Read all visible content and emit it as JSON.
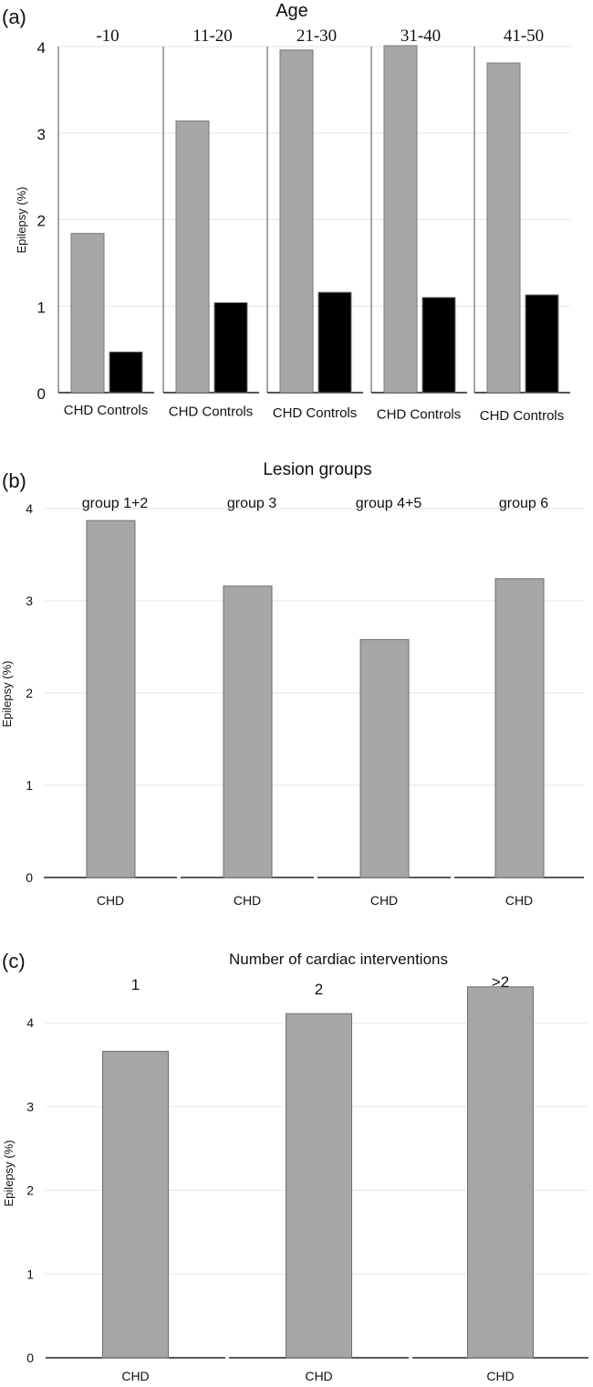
{
  "chart_data": [
    {
      "type": "bar",
      "panel_label": "(a)",
      "title": "Age",
      "groups": [
        "-10",
        "11-20",
        "21-30",
        "31-40",
        "41-50"
      ],
      "bar_labels": [
        "CHD",
        "Controls"
      ],
      "series": [
        {
          "name": "CHD",
          "values": [
            1.84,
            3.14,
            3.96,
            4.01,
            3.81
          ],
          "color": "#a6a6a6"
        },
        {
          "name": "Controls",
          "values": [
            0.47,
            1.04,
            1.16,
            1.1,
            1.13
          ],
          "color": "#000000"
        }
      ],
      "ylabel": "Epilepsy (%)",
      "yticks": [
        0,
        1,
        2,
        3,
        4
      ],
      "ylim": [
        0,
        4
      ],
      "grid": true
    },
    {
      "type": "bar",
      "panel_label": "(b)",
      "title": "Lesion groups",
      "groups": [
        "group 1+2",
        "group 3",
        "group 4+5",
        "group 6"
      ],
      "bar_labels": [
        "CHD",
        "CHD",
        "CHD",
        "CHD"
      ],
      "series": [
        {
          "name": "CHD",
          "values": [
            3.87,
            3.16,
            2.58,
            3.24
          ],
          "color": "#a6a6a6"
        }
      ],
      "ylabel": "Epilepsy (%)",
      "yticks": [
        0,
        1,
        2,
        3,
        4
      ],
      "ylim": [
        0,
        4
      ],
      "grid": true
    },
    {
      "type": "bar",
      "panel_label": "(c)",
      "title": "Number of cardiac interventions",
      "groups": [
        "1",
        "2",
        ">2"
      ],
      "bar_labels": [
        "CHD",
        "CHD",
        "CHD"
      ],
      "series": [
        {
          "name": "CHD",
          "values": [
            3.66,
            4.11,
            4.43
          ],
          "color": "#a6a6a6"
        }
      ],
      "ylabel": "Epilepsy (%)",
      "yticks": [
        0,
        1,
        2,
        3,
        4
      ],
      "ylim": [
        0,
        4.4
      ],
      "grid": true
    }
  ]
}
